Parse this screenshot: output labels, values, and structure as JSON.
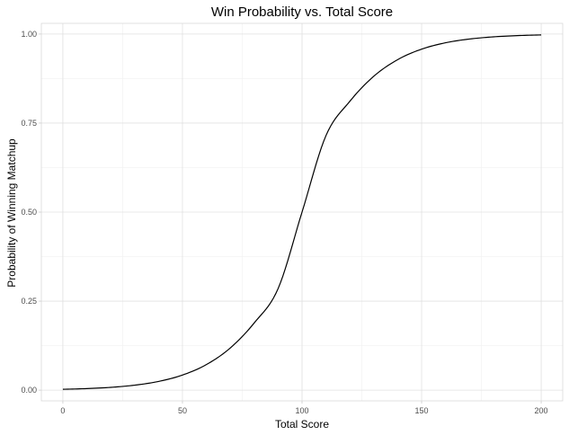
{
  "chart_data": {
    "type": "line",
    "title": "Win Probability vs. Total Score",
    "xlabel": "Total Score",
    "ylabel": "Probability of Winning Matchup",
    "xlim": [
      -9,
      209
    ],
    "ylim": [
      -0.03,
      1.03
    ],
    "x_ticks": [
      0,
      50,
      100,
      150,
      200
    ],
    "x_tick_labels": [
      "0",
      "50",
      "100",
      "150",
      "200"
    ],
    "y_ticks": [
      0,
      0.25,
      0.5,
      0.75,
      1.0
    ],
    "y_tick_labels": [
      "0.00",
      "0.25",
      "0.50",
      "0.75",
      "1.00"
    ],
    "x_minor_ticks": [
      25,
      75,
      125,
      175
    ],
    "y_minor_ticks": [
      0.125,
      0.375,
      0.625,
      0.875
    ],
    "grid": true,
    "legend": "none",
    "series": [
      {
        "color": "#000000",
        "x": [
          0,
          10,
          20,
          30,
          40,
          50,
          60,
          70,
          80,
          90,
          100,
          110,
          120,
          130,
          140,
          150,
          160,
          170,
          180,
          190,
          200
        ],
        "y": [
          0.0025,
          0.0044,
          0.0079,
          0.014,
          0.0245,
          0.0424,
          0.0718,
          0.1185,
          0.1888,
          0.2853,
          0.5,
          0.7147,
          0.8112,
          0.8815,
          0.9282,
          0.9576,
          0.9755,
          0.986,
          0.9921,
          0.9956,
          0.9975
        ]
      }
    ]
  }
}
